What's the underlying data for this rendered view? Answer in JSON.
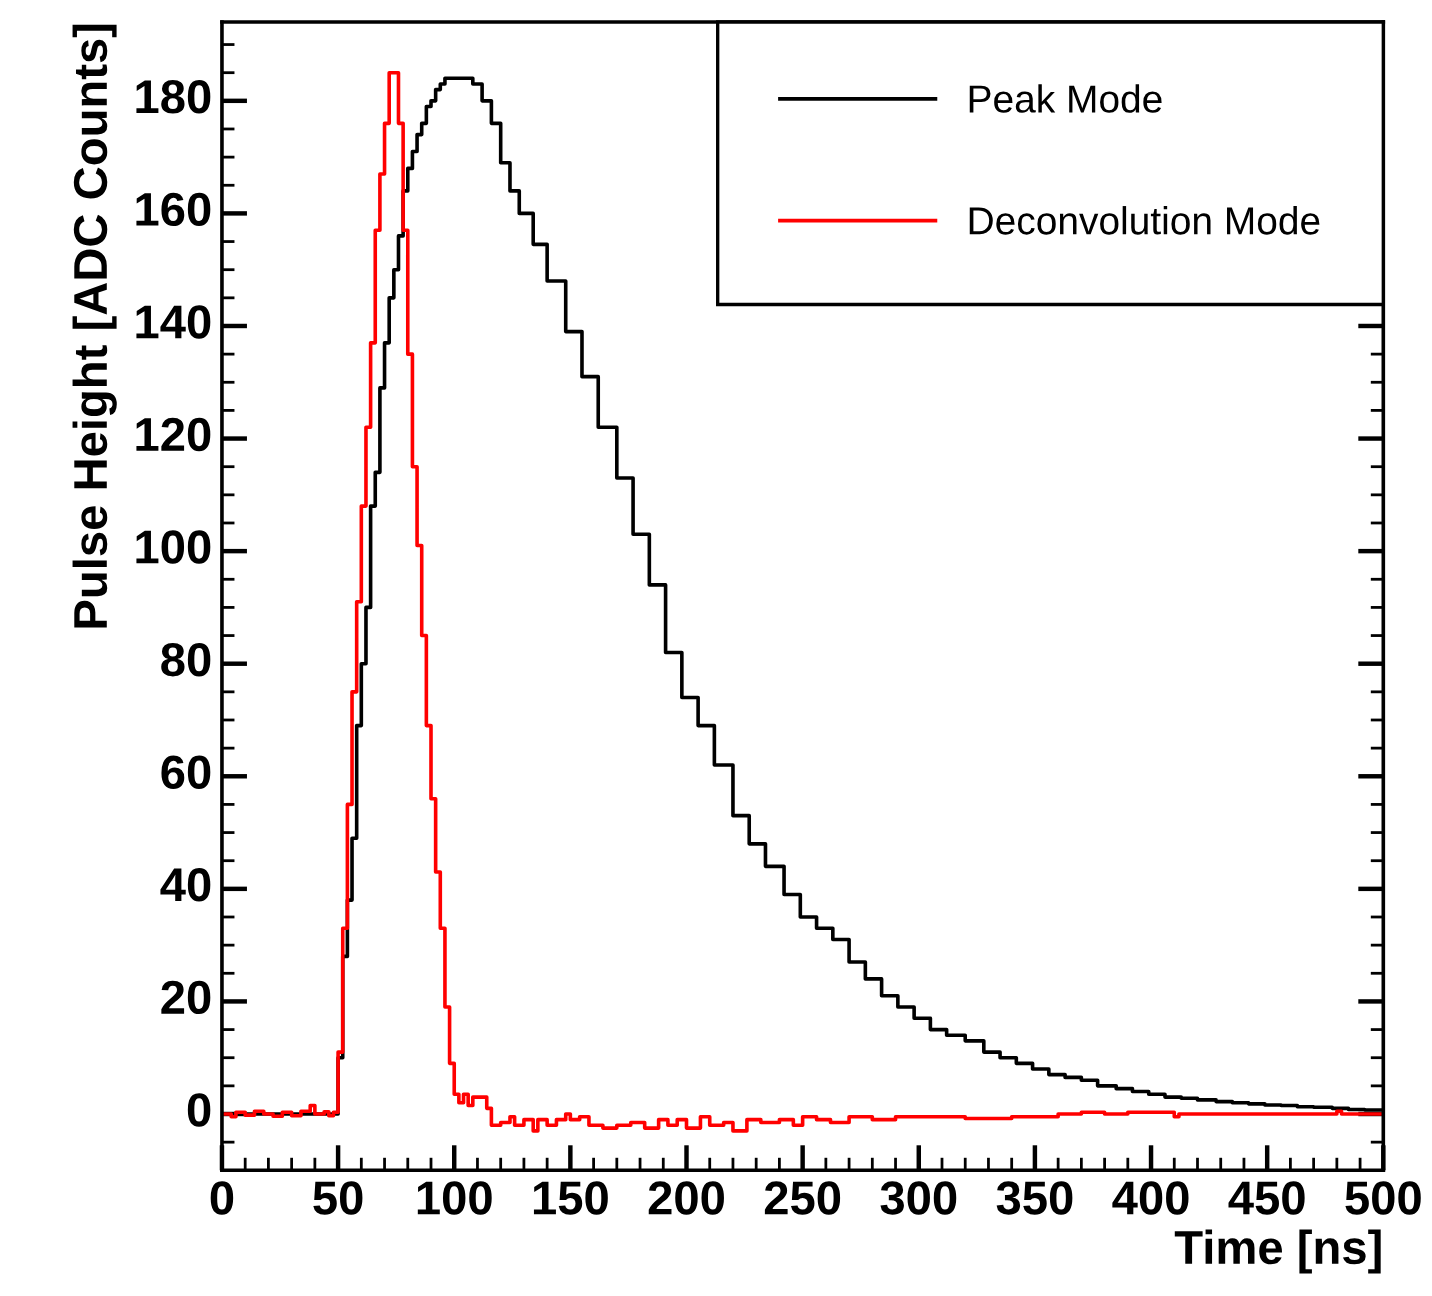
{
  "chart_data": {
    "type": "step",
    "xlabel": "Time [ns]",
    "ylabel": "Pulse Height [ADC Counts]",
    "xlim": [
      0,
      500
    ],
    "xticks": [
      0,
      {
        "value": 10,
        "label": null
      },
      {
        "value": 20,
        "label": null
      },
      {
        "value": 30,
        "label": null
      },
      {
        "value": 40,
        "label": null
      },
      50,
      {
        "value": 60,
        "label": null
      },
      {
        "value": 70,
        "label": null
      },
      {
        "value": 80,
        "label": null
      },
      {
        "value": 90,
        "label": null
      },
      100,
      {
        "value": 110,
        "label": null
      },
      {
        "value": 120,
        "label": null
      },
      {
        "value": 130,
        "label": null
      },
      {
        "value": 140,
        "label": null
      },
      150,
      {
        "value": 160,
        "label": null
      },
      {
        "value": 170,
        "label": null
      },
      {
        "value": 180,
        "label": null
      },
      {
        "value": 190,
        "label": null
      },
      200,
      {
        "value": 210,
        "label": null
      },
      {
        "value": 220,
        "label": null
      },
      {
        "value": 230,
        "label": null
      },
      {
        "value": 240,
        "label": null
      },
      250,
      {
        "value": 260,
        "label": null
      },
      {
        "value": 270,
        "label": null
      },
      {
        "value": 280,
        "label": null
      },
      {
        "value": 290,
        "label": null
      },
      300,
      {
        "value": 310,
        "label": null
      },
      {
        "value": 320,
        "label": null
      },
      {
        "value": 330,
        "label": null
      },
      {
        "value": 340,
        "label": null
      },
      350,
      {
        "value": 360,
        "label": null
      },
      {
        "value": 370,
        "label": null
      },
      {
        "value": 380,
        "label": null
      },
      {
        "value": 390,
        "label": null
      },
      400,
      {
        "value": 410,
        "label": null
      },
      {
        "value": 420,
        "label": null
      },
      {
        "value": 430,
        "label": null
      },
      {
        "value": 440,
        "label": null
      },
      450,
      {
        "value": 460,
        "label": null
      },
      {
        "value": 470,
        "label": null
      },
      {
        "value": 480,
        "label": null
      },
      {
        "value": 490,
        "label": null
      },
      500
    ],
    "ylim": [
      -10,
      194
    ],
    "yticks": [
      {
        "value": -5,
        "label": null
      },
      0,
      {
        "value": 5,
        "label": null
      },
      {
        "value": 10,
        "label": null
      },
      {
        "value": 15,
        "label": null
      },
      20,
      {
        "value": 25,
        "label": null
      },
      {
        "value": 30,
        "label": null
      },
      {
        "value": 35,
        "label": null
      },
      40,
      {
        "value": 45,
        "label": null
      },
      {
        "value": 50,
        "label": null
      },
      {
        "value": 55,
        "label": null
      },
      60,
      {
        "value": 65,
        "label": null
      },
      {
        "value": 70,
        "label": null
      },
      {
        "value": 75,
        "label": null
      },
      80,
      {
        "value": 85,
        "label": null
      },
      {
        "value": 90,
        "label": null
      },
      {
        "value": 95,
        "label": null
      },
      100,
      {
        "value": 105,
        "label": null
      },
      {
        "value": 110,
        "label": null
      },
      {
        "value": 115,
        "label": null
      },
      120,
      {
        "value": 125,
        "label": null
      },
      {
        "value": 130,
        "label": null
      },
      {
        "value": 135,
        "label": null
      },
      140,
      {
        "value": 145,
        "label": null
      },
      {
        "value": 150,
        "label": null
      },
      {
        "value": 155,
        "label": null
      },
      160,
      {
        "value": 165,
        "label": null
      },
      {
        "value": 170,
        "label": null
      },
      {
        "value": 175,
        "label": null
      },
      180,
      {
        "value": 185,
        "label": null
      },
      {
        "value": 190,
        "label": null
      }
    ],
    "grid": false,
    "legend": "top right",
    "series": [
      {
        "name": "Peak Mode",
        "color": "#000000",
        "x": [
          0,
          48,
          50,
          52,
          54,
          56,
          58,
          60,
          62,
          64,
          66,
          68,
          70,
          72,
          74,
          76,
          78,
          80,
          82,
          84,
          86,
          88,
          90,
          92,
          94,
          96,
          98,
          100,
          104,
          108,
          112,
          116,
          120,
          124,
          128,
          134,
          140,
          148,
          155,
          162,
          170,
          177,
          184,
          191,
          198,
          205,
          212,
          220,
          227,
          234,
          242,
          249,
          256,
          263,
          270,
          277,
          284,
          291,
          298,
          305,
          312,
          320,
          328,
          335,
          342,
          349,
          356,
          363,
          370,
          377,
          385,
          392,
          399,
          406,
          413,
          420,
          428,
          435,
          442,
          449,
          456,
          463,
          470,
          478,
          485,
          492,
          500
        ],
        "values": [
          0,
          0,
          10,
          28,
          38,
          49,
          69,
          80,
          90,
          108,
          114,
          129,
          137,
          145,
          150,
          156,
          164,
          168,
          171,
          174,
          176,
          179,
          180,
          182,
          183,
          184,
          184,
          184,
          184,
          183,
          180,
          176,
          169,
          164,
          160,
          154.5,
          148,
          139,
          131,
          122,
          113,
          103,
          94,
          82,
          74,
          69,
          62,
          53,
          48,
          44,
          39,
          35,
          33,
          31,
          27,
          24,
          21,
          19,
          17,
          15,
          14,
          13,
          11,
          10,
          9,
          8,
          7,
          6.5,
          6,
          5,
          4.5,
          4,
          3.5,
          3,
          2.8,
          2.5,
          2.2,
          2,
          1.8,
          1.6,
          1.5,
          1.3,
          1.2,
          1,
          0.8,
          0.7,
          0.7
        ]
      },
      {
        "name": "Deconvolution Mode",
        "color": "#ff0000",
        "x": [
          0,
          4,
          6,
          10,
          14,
          18,
          22,
          26,
          30,
          34,
          38,
          40,
          44,
          46,
          48,
          50,
          52,
          54,
          56,
          58,
          60,
          62,
          64,
          66,
          68,
          70,
          72,
          74,
          76,
          78,
          80,
          82,
          84,
          86,
          88,
          90,
          92,
          94,
          96,
          98,
          100,
          102,
          104,
          106,
          108,
          110,
          114,
          116,
          120,
          124,
          126,
          130,
          134,
          136,
          140,
          144,
          148,
          150,
          154,
          158,
          164,
          170,
          176,
          182,
          188,
          192,
          196,
          200,
          206,
          210,
          216,
          220,
          226,
          232,
          240,
          246,
          250,
          256,
          262,
          270,
          280,
          290,
          300,
          320,
          340,
          360,
          370,
          380,
          390,
          410,
          412,
          440,
          470,
          480,
          482,
          500
        ],
        "values": [
          0,
          -0.5,
          0.3,
          -0.2,
          0.5,
          0,
          -0.4,
          0.3,
          -0.3,
          0.5,
          1.5,
          0,
          0.4,
          -0.3,
          0.3,
          11,
          33,
          55,
          75,
          91,
          108,
          122,
          137,
          157,
          167,
          176,
          185,
          185,
          176,
          157,
          135,
          115,
          101,
          85,
          69,
          56,
          43,
          33,
          19,
          9,
          3.5,
          2,
          3.5,
          1.5,
          3,
          3,
          1,
          -2,
          -1.5,
          -0.5,
          -2,
          -1,
          -3,
          -1,
          -2,
          -1,
          0,
          -1,
          -0.5,
          -2,
          -2.5,
          -2,
          -1.5,
          -2.5,
          -1,
          -2,
          -1,
          -2.5,
          -0.5,
          -2,
          -1.5,
          -3,
          -1,
          -1.5,
          -1,
          -2,
          -0.5,
          -1,
          -1.5,
          -0.5,
          -1,
          -0.5,
          -0.5,
          -0.8,
          -0.5,
          0,
          0.3,
          0,
          0.3,
          -0.5,
          0,
          0,
          0,
          0.5,
          0,
          0
        ]
      }
    ]
  }
}
